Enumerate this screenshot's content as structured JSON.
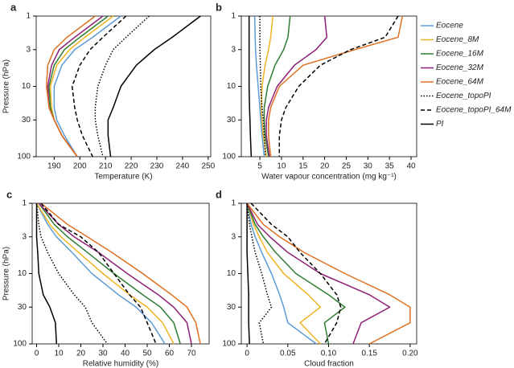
{
  "chart_data": [
    {
      "type": "line",
      "label": "a",
      "xlabel": "Temperature (K)",
      "ylabel": "Pressure (hPa)",
      "ylog": true,
      "xlim": [
        183,
        251
      ],
      "xticks": [
        190,
        200,
        210,
        220,
        230,
        240,
        250
      ],
      "ylim": [
        100,
        1
      ],
      "yticks": [
        1,
        3,
        10,
        30,
        100
      ],
      "y": [
        1,
        2,
        3,
        5,
        10,
        20,
        30,
        50,
        100
      ],
      "series": [
        {
          "color": "#5b9bd5",
          "dash": "solid",
          "values": [
            216,
            205,
            198,
            193,
            190,
            190,
            191,
            194,
            199
          ]
        },
        {
          "color": "#f0b323",
          "dash": "solid",
          "values": [
            213,
            202,
            196,
            191,
            188.5,
            189,
            190,
            193,
            199
          ]
        },
        {
          "color": "#2e7d32",
          "dash": "solid",
          "values": [
            211,
            200,
            194,
            190,
            188,
            188.5,
            190,
            193,
            199
          ]
        },
        {
          "color": "#8e1f77",
          "dash": "solid",
          "values": [
            209,
            198,
            192,
            189,
            187.5,
            188,
            190,
            193,
            199
          ]
        },
        {
          "color": "#e07020",
          "dash": "solid",
          "values": [
            206,
            195,
            190,
            187.5,
            187,
            188,
            190,
            193,
            199
          ]
        },
        {
          "color": "#000000",
          "dash": "dotted",
          "values": [
            227,
            218,
            213,
            210,
            207,
            206,
            206,
            207,
            209
          ]
        },
        {
          "color": "#000000",
          "dash": "dashed",
          "values": [
            218,
            209,
            204,
            200,
            197,
            198,
            199,
            201,
            205
          ]
        },
        {
          "color": "#000000",
          "dash": "solid",
          "values": [
            247,
            236,
            229,
            222,
            216,
            213,
            211,
            211,
            212
          ]
        }
      ]
    },
    {
      "type": "line",
      "label": "b",
      "xlabel": "Water vapour concentration (mg kg⁻¹)",
      "ylog": true,
      "legend": "right",
      "xlim": [
        0.7,
        41.3
      ],
      "xticks": [
        5,
        10,
        15,
        20,
        25,
        30,
        35,
        40
      ],
      "ylim": [
        100,
        1
      ],
      "yticks": [
        1,
        3,
        10,
        30,
        100
      ],
      "y": [
        1,
        2,
        3,
        5,
        10,
        20,
        30,
        50,
        100
      ],
      "series": [
        {
          "name": "Eocene",
          "color": "#5b9bd5",
          "dash": "solid",
          "values": [
            3.8,
            3.9,
            4,
            4.2,
            4.6,
            5,
            5.2,
            5.5,
            6
          ]
        },
        {
          "name": "Eocene_8M",
          "color": "#f0b323",
          "dash": "solid",
          "values": [
            8,
            7.5,
            7,
            6.2,
            5.5,
            5.3,
            5.5,
            5.8,
            6.5
          ]
        },
        {
          "name": "Eocene_16M",
          "color": "#2e7d32",
          "dash": "solid",
          "values": [
            12,
            11.5,
            10.5,
            8.5,
            6.8,
            6,
            6,
            6.2,
            7
          ]
        },
        {
          "name": "Eocene_32M",
          "color": "#8e1f77",
          "dash": "solid",
          "values": [
            20,
            20.5,
            18,
            13,
            9,
            7,
            6.5,
            6.5,
            7.2
          ]
        },
        {
          "name": "Eocene_64M",
          "color": "#e07020",
          "dash": "solid",
          "values": [
            38,
            37,
            27,
            15,
            9.5,
            7.5,
            7,
            7,
            7.5
          ]
        },
        {
          "name": "Eocene_topoPI",
          "color": "#000000",
          "dash": "dotted",
          "values": [
            5,
            5,
            5,
            5.1,
            5.2,
            5.5,
            5.8,
            6,
            6.3
          ]
        },
        {
          "name": "Eocene_topoPI_64M",
          "color": "#000000",
          "dash": "dashed",
          "values": [
            37,
            34,
            26,
            19,
            14,
            11,
            10,
            9.5,
            9.5
          ]
        },
        {
          "name": "PI",
          "color": "#000000",
          "dash": "solid",
          "values": [
            2.5,
            2.5,
            2.5,
            2.5,
            2.5,
            2.6,
            2.7,
            2.8,
            3
          ]
        }
      ]
    },
    {
      "type": "line",
      "label": "c",
      "xlabel": "Relative humidity (%)",
      "ylabel": "Pressure (hPa)",
      "ylog": true,
      "xlim": [
        -2,
        78
      ],
      "xticks": [
        0,
        10,
        20,
        30,
        40,
        50,
        60,
        70
      ],
      "ylim": [
        100,
        1
      ],
      "yticks": [
        1,
        3,
        10,
        30,
        100
      ],
      "y": [
        1,
        2,
        3,
        5,
        10,
        20,
        30,
        50,
        100
      ],
      "series": [
        {
          "color": "#5b9bd5",
          "dash": "solid",
          "values": [
            0,
            5,
            9,
            16,
            25,
            37,
            45,
            52,
            58
          ]
        },
        {
          "color": "#f0b323",
          "dash": "solid",
          "values": [
            0,
            6,
            11,
            19,
            30,
            42,
            50,
            57,
            62
          ]
        },
        {
          "color": "#2e7d32",
          "dash": "solid",
          "values": [
            1,
            8,
            14,
            23,
            35,
            48,
            56,
            62,
            65
          ]
        },
        {
          "color": "#8e1f77",
          "dash": "solid",
          "values": [
            1,
            10,
            17,
            28,
            41,
            55,
            62,
            68,
            70
          ]
        },
        {
          "color": "#e07020",
          "dash": "solid",
          "values": [
            2,
            14,
            23,
            34,
            48,
            61,
            68,
            72,
            74
          ]
        },
        {
          "color": "#000000",
          "dash": "dotted",
          "values": [
            0,
            1,
            2,
            5,
            10,
            17,
            22,
            25,
            32
          ]
        },
        {
          "color": "#000000",
          "dash": "dashed",
          "values": [
            2,
            10,
            20,
            28,
            35,
            42,
            47,
            50,
            54
          ]
        },
        {
          "color": "#000000",
          "dash": "solid",
          "values": [
            0,
            0,
            0,
            0.5,
            1,
            3,
            6,
            8.5,
            9
          ]
        }
      ]
    },
    {
      "type": "line",
      "label": "d",
      "xlabel": "Cloud fraction",
      "ylog": true,
      "xlim": [
        -0.007,
        0.208
      ],
      "xticks": [
        0,
        0.05,
        {
          "value": 0.1,
          "label": "0.10"
        },
        0.15,
        {
          "value": 0.2,
          "label": "0.20"
        }
      ],
      "ylim": [
        100,
        1
      ],
      "yticks": [
        1,
        3,
        10,
        30,
        100
      ],
      "y": [
        1,
        2,
        3,
        5,
        10,
        20,
        30,
        50,
        100
      ],
      "series": [
        {
          "color": "#5b9bd5",
          "dash": "solid",
          "values": [
            0,
            0.005,
            0.01,
            0.018,
            0.03,
            0.04,
            0.045,
            0.05,
            0.085
          ]
        },
        {
          "color": "#f0b323",
          "dash": "solid",
          "values": [
            0,
            0.008,
            0.015,
            0.025,
            0.045,
            0.075,
            0.09,
            0.065,
            0.09
          ]
        },
        {
          "color": "#2e7d32",
          "dash": "solid",
          "values": [
            0,
            0.01,
            0.02,
            0.035,
            0.06,
            0.1,
            0.12,
            0.095,
            0.1
          ]
        },
        {
          "color": "#8e1f77",
          "dash": "solid",
          "values": [
            0,
            0.013,
            0.028,
            0.05,
            0.09,
            0.15,
            0.175,
            0.14,
            0.13
          ]
        },
        {
          "color": "#e07020",
          "dash": "solid",
          "values": [
            0,
            0.02,
            0.04,
            0.07,
            0.12,
            0.175,
            0.2,
            0.2,
            0.15
          ]
        },
        {
          "color": "#000000",
          "dash": "dotted",
          "values": [
            0,
            0.003,
            0.006,
            0.01,
            0.018,
            0.025,
            0.03,
            0.015,
            0.02
          ]
        },
        {
          "color": "#000000",
          "dash": "dashed",
          "values": [
            0.005,
            0.03,
            0.05,
            0.065,
            0.09,
            0.11,
            0.115,
            0.11,
            0.095
          ]
        },
        {
          "color": "#000000",
          "dash": "solid",
          "values": [
            0,
            0,
            0,
            0,
            0.001,
            0.002,
            0.002,
            0.002,
            0.003
          ]
        }
      ]
    }
  ]
}
